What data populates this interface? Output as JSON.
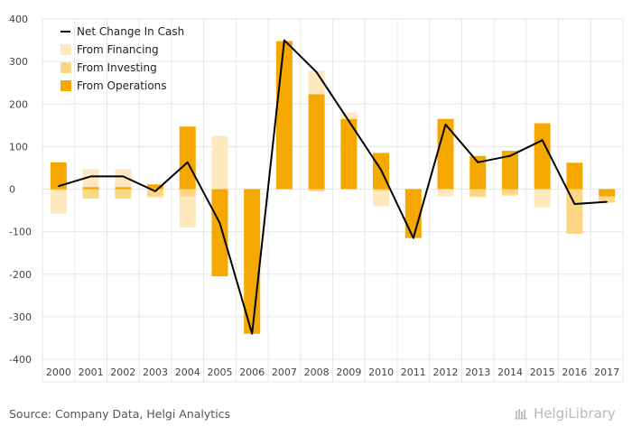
{
  "chart_data": {
    "type": "bar",
    "title": "",
    "xlabel": "",
    "ylabel": "",
    "ylim": [
      -400,
      400
    ],
    "yticks": [
      400,
      300,
      200,
      100,
      0,
      -100,
      -200,
      -300,
      -400
    ],
    "stacked": true,
    "categories": [
      "2000",
      "2001",
      "2002",
      "2003",
      "2004",
      "2005",
      "2006",
      "2007",
      "2008",
      "2009",
      "2010",
      "2011",
      "2012",
      "2013",
      "2014",
      "2015",
      "2016",
      "2017"
    ],
    "series": [
      {
        "name": "From Operations",
        "type": "bar",
        "color": "#f5a800",
        "values": [
          63,
          5,
          5,
          11,
          147,
          -205,
          -340,
          348,
          223,
          165,
          85,
          -115,
          165,
          78,
          90,
          155,
          62,
          -17
        ]
      },
      {
        "name": "From Investing",
        "type": "bar",
        "color": "#fbd685",
        "values": [
          -3,
          -22,
          -22,
          -17,
          -17,
          0,
          0,
          0,
          -5,
          0,
          -5,
          0,
          0,
          -17,
          -13,
          0,
          -105,
          -15
        ]
      },
      {
        "name": "From Financing",
        "type": "bar",
        "color": "#fde9bd",
        "values": [
          -55,
          42,
          42,
          -3,
          -73,
          125,
          0,
          0,
          55,
          15,
          -35,
          0,
          -17,
          -3,
          -3,
          -43,
          0,
          0
        ]
      },
      {
        "name": "Net Change In Cash",
        "type": "line",
        "color": "#000000",
        "values": [
          7,
          30,
          30,
          -5,
          63,
          -80,
          -340,
          350,
          275,
          160,
          45,
          -115,
          152,
          63,
          78,
          115,
          -35,
          -30
        ]
      }
    ],
    "legend": {
      "position": "top-left",
      "items": [
        "Net Change In Cash",
        "From Financing",
        "From Investing",
        "From Operations"
      ]
    },
    "grid": true
  },
  "footer": {
    "source": "Source: Company Data, Helgi Analytics",
    "brand": "HelgiLibrary"
  }
}
